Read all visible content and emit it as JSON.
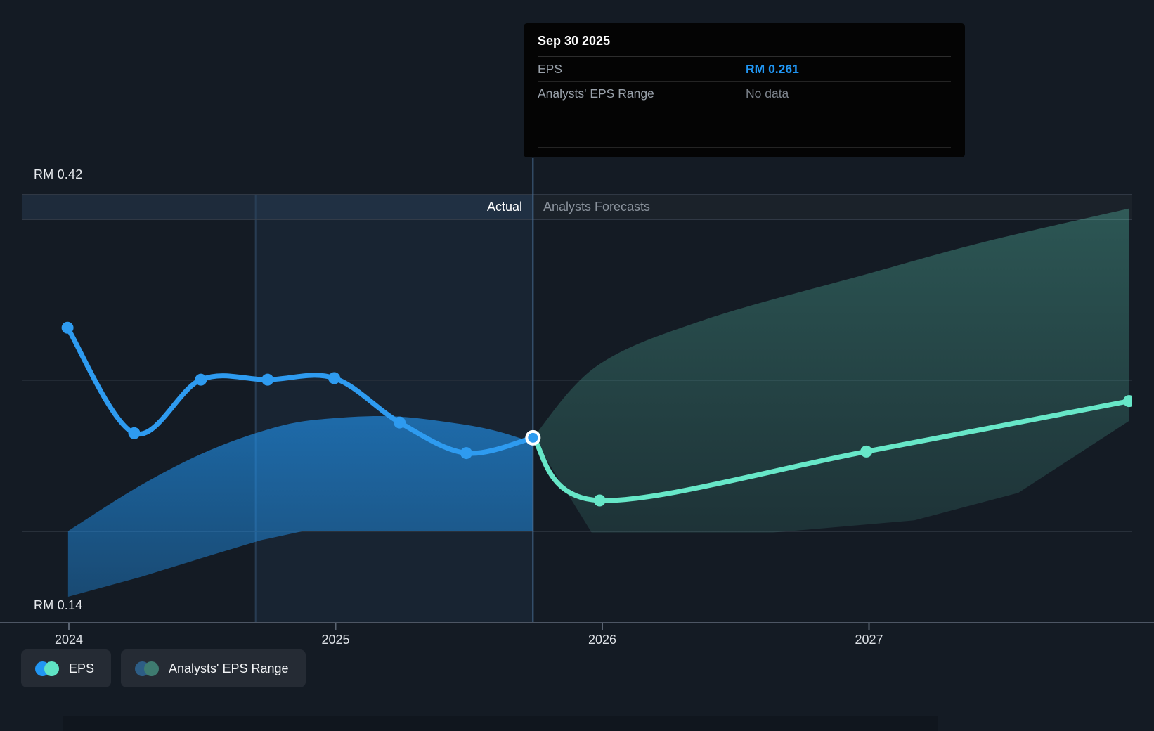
{
  "tooltip": {
    "title": "Sep 30 2025",
    "rows": [
      {
        "label": "EPS",
        "value": "RM 0.261",
        "value_color": "#2196f3"
      },
      {
        "label": "Analysts' EPS Range",
        "value": "No data",
        "value_color": "#7e858e"
      }
    ]
  },
  "y_axis": {
    "top_label": "RM 0.42",
    "bottom_label": "RM 0.14"
  },
  "x_axis": {
    "ticks": [
      {
        "label": "2024",
        "t": 2024
      },
      {
        "label": "2025",
        "t": 2025
      },
      {
        "label": "2026",
        "t": 2026
      },
      {
        "label": "2027",
        "t": 2027
      }
    ]
  },
  "sections": {
    "actual_label": "Actual",
    "forecast_label": "Analysts Forecasts"
  },
  "legend": [
    {
      "label": "EPS",
      "colors": [
        "#2196f3",
        "#5fe3c4"
      ]
    },
    {
      "label": "Analysts' EPS Range",
      "colors": [
        "#2d5d85",
        "#3e7b70"
      ]
    }
  ],
  "colors": {
    "actual_line": "#2e9bf0",
    "forecast_line": "#67e7c8",
    "actual_band": "#2196f3",
    "forecast_band": "#64e0c4",
    "divider": "#4a6e94",
    "grid_strong": "#3a434f",
    "grid_faint": "#2b333e",
    "axis_line": "#4d5664",
    "current_dot_ring": "#ffffff"
  },
  "chart_data": {
    "type": "line",
    "title": "EPS: actual vs analysts forecasts",
    "y_unit": "RM",
    "ylim": [
      0.14,
      0.42
    ],
    "xlim": [
      2023.82,
      2027.99
    ],
    "grid": "horizontal",
    "legend_position": "bottom-left",
    "divider_t": 2025.74,
    "highlight_start_t": 2024.7,
    "current_point": {
      "date": "Sep 30 2025",
      "t": 2025.74,
      "value": 0.261
    },
    "series": [
      {
        "name": "EPS",
        "role": "actual",
        "points": [
          {
            "date": "Dec 31 2023",
            "t": 2023.995,
            "value": 0.333
          },
          {
            "date": "Mar 31 2024",
            "t": 2024.245,
            "value": 0.264
          },
          {
            "date": "Jun 30 2024",
            "t": 2024.495,
            "value": 0.299
          },
          {
            "date": "Sep 30 2024",
            "t": 2024.745,
            "value": 0.299
          },
          {
            "date": "Dec 31 2024",
            "t": 2024.995,
            "value": 0.3
          },
          {
            "date": "Mar 31 2025",
            "t": 2025.24,
            "value": 0.271
          },
          {
            "date": "Jun 30 2025",
            "t": 2025.49,
            "value": 0.251
          },
          {
            "date": "Sep 30 2025",
            "t": 2025.74,
            "value": 0.261
          }
        ]
      },
      {
        "name": "EPS forecast",
        "role": "forecast",
        "points": [
          {
            "date": "Sep 30 2025",
            "t": 2025.74,
            "value": 0.261
          },
          {
            "date": "Dec 31 2025",
            "t": 2025.99,
            "value": 0.22
          },
          {
            "date": "Dec 31 2026",
            "t": 2026.99,
            "value": 0.252
          },
          {
            "date": "Dec 31 2027",
            "t": 2027.975,
            "value": 0.285
          }
        ]
      }
    ],
    "bands": [
      {
        "name": "analysts-range-actual",
        "top": [
          [
            2023.997,
            0.2
          ],
          [
            2024.27,
            0.23
          ],
          [
            2024.53,
            0.253
          ],
          [
            2024.8,
            0.269
          ],
          [
            2025.01,
            0.274
          ],
          [
            2025.22,
            0.275
          ],
          [
            2025.43,
            0.271
          ],
          [
            2025.59,
            0.266
          ],
          [
            2025.74,
            0.258
          ]
        ],
        "bottom": [
          [
            2023.997,
            0.157
          ],
          [
            2024.27,
            0.17
          ],
          [
            2024.53,
            0.184
          ],
          [
            2024.72,
            0.194
          ],
          [
            2024.88,
            0.2
          ],
          [
            2025.74,
            0.2
          ]
        ]
      },
      {
        "name": "analysts-range-forecast",
        "top": [
          [
            2025.74,
            0.261
          ],
          [
            2025.98,
            0.308
          ],
          [
            2026.38,
            0.338
          ],
          [
            2026.99,
            0.368
          ],
          [
            2027.43,
            0.389
          ],
          [
            2027.975,
            0.411
          ]
        ],
        "bottom": [
          [
            2025.74,
            0.261
          ],
          [
            2025.96,
            0.199
          ],
          [
            2026.64,
            0.199
          ],
          [
            2027.17,
            0.207
          ],
          [
            2027.56,
            0.225
          ],
          [
            2027.975,
            0.272
          ]
        ]
      }
    ]
  }
}
